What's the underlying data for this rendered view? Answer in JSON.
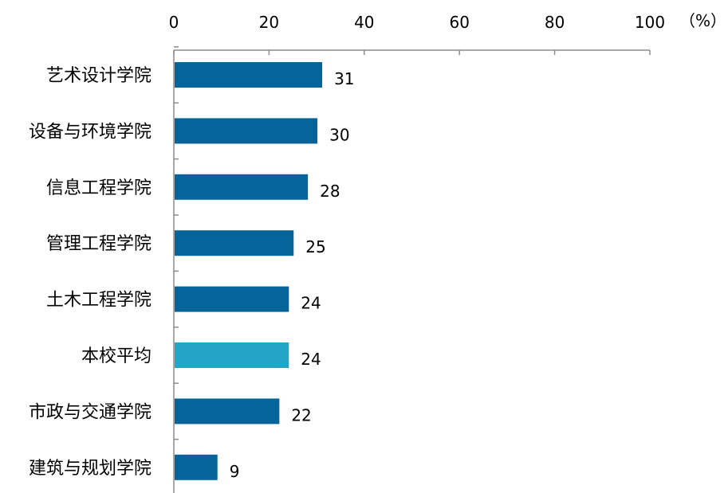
{
  "chart_data": {
    "type": "bar",
    "orientation": "horizontal",
    "unit_label": "（%）",
    "xlim": [
      0,
      100
    ],
    "xticks": [
      0,
      20,
      40,
      60,
      80,
      100
    ],
    "x_axis_position": "top",
    "grid": false,
    "categories": [
      "艺术设计学院",
      "设备与环境学院",
      "信息工程学院",
      "管理工程学院",
      "土木工程学院",
      "本校平均",
      "市政与交通学院",
      "建筑与规划学院"
    ],
    "values": [
      31,
      30,
      28,
      25,
      24,
      24,
      22,
      9
    ],
    "bar_colors": [
      "#05659a",
      "#05659a",
      "#05659a",
      "#05659a",
      "#05659a",
      "#22a5c6",
      "#05659a",
      "#05659a"
    ]
  }
}
